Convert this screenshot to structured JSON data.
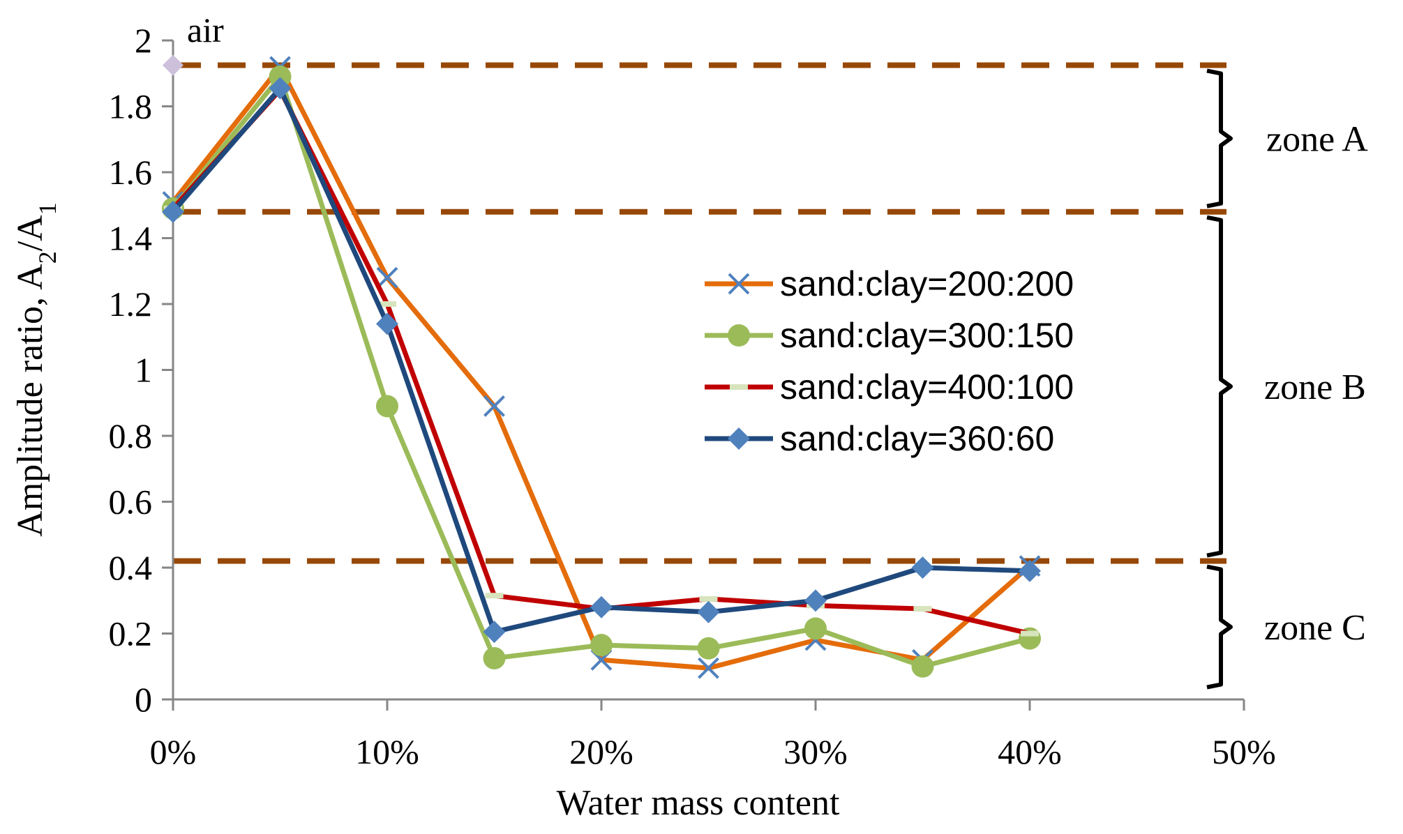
{
  "chart_data": {
    "type": "line",
    "title": "",
    "xlabel": "Water mass content",
    "ylabel": "Amplitude ratio, A2/A1",
    "xlim": [
      0,
      50
    ],
    "ylim": [
      0,
      2
    ],
    "x_ticks": [
      0,
      10,
      20,
      30,
      40,
      50
    ],
    "x_tick_labels": [
      "0%",
      "10%",
      "20%",
      "30%",
      "40%",
      "50%"
    ],
    "y_ticks": [
      0,
      0.2,
      0.4,
      0.6,
      0.8,
      1,
      1.2,
      1.4,
      1.6,
      1.8,
      2
    ],
    "y_tick_labels": [
      "0",
      "0.2",
      "0.4",
      "0.6",
      "0.8",
      "1",
      "1.2",
      "1.4",
      "1.6",
      "1.8",
      "2"
    ],
    "grid": false,
    "legend_position": "center-right",
    "x": [
      0,
      5,
      10,
      15,
      20,
      25,
      30,
      35,
      40
    ],
    "series": [
      {
        "name": "sand:clay=200:200",
        "color": "#E46C0A",
        "marker": "x",
        "marker_color": "#4F81BD",
        "values": [
          1.51,
          1.92,
          1.28,
          0.89,
          0.12,
          0.095,
          0.18,
          0.12,
          0.405
        ]
      },
      {
        "name": "sand:clay=300:150",
        "color": "#9BBB59",
        "marker": "circle",
        "marker_color": "#9BBB59",
        "values": [
          1.49,
          1.89,
          0.89,
          0.125,
          0.165,
          0.155,
          0.215,
          0.1,
          0.185
        ]
      },
      {
        "name": "sand:clay=400:100",
        "color": "#C00000",
        "marker": "dash",
        "marker_color": "#D7E4BD",
        "values": [
          1.49,
          1.85,
          1.2,
          0.315,
          0.275,
          0.305,
          0.285,
          0.275,
          0.2
        ]
      },
      {
        "name": "sand:clay=360:60",
        "color": "#1F497D",
        "marker": "diamond",
        "marker_color": "#4F81BD",
        "values": [
          1.48,
          1.855,
          1.14,
          0.205,
          0.28,
          0.265,
          0.3,
          0.4,
          0.39
        ]
      }
    ],
    "air_point": {
      "label": "air",
      "x": 0,
      "y": 1.925,
      "color": "#CCC0DA"
    },
    "reference_lines": {
      "color": "#974806",
      "values": [
        1.925,
        1.48,
        0.42
      ]
    },
    "zones": [
      {
        "label": "zone A",
        "from": 1.48,
        "to": 1.925
      },
      {
        "label": "zone B",
        "from": 0.42,
        "to": 1.48
      },
      {
        "label": "zone C",
        "from": 0.02,
        "to": 0.42
      }
    ]
  }
}
